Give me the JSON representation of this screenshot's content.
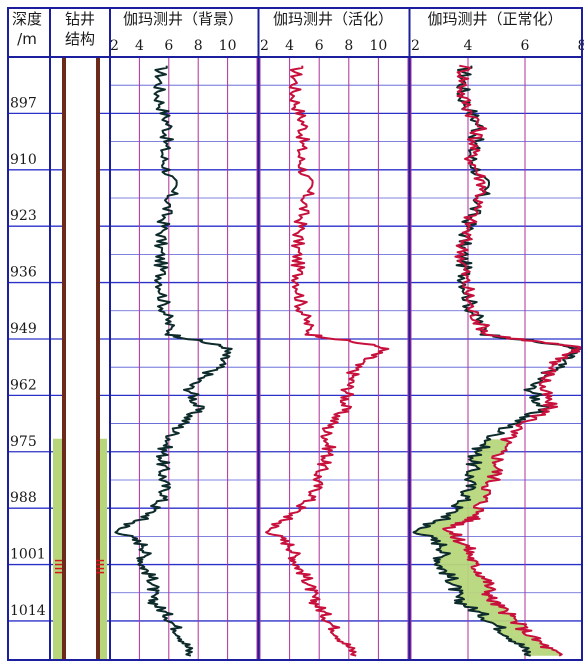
{
  "chart_data": {
    "type": "line",
    "header": {
      "depth_title_line1": "深度",
      "depth_title_line2": "/m",
      "well_title_line1": "钻井",
      "well_title_line2": "结构"
    },
    "depth_ticks": [
      897,
      910,
      923,
      936,
      949,
      962,
      975,
      988,
      1001,
      1014
    ],
    "depth_range": [
      884,
      1023
    ],
    "colors": {
      "frame": "#1b1f9e",
      "grid_h": "#2b31c8",
      "grid_v": "#b0309a",
      "background_curve": "#0e2b2b",
      "activated_curve": "#c8103c",
      "normalized_curve_bg": "#0e2b2b",
      "normalized_curve_act": "#c8103c",
      "fill": "#b7d67c",
      "casing": "#6b2a1a"
    },
    "tracks": [
      {
        "title": "伽玛测井（背景）",
        "tick_labels": [
          "2",
          "4",
          "6",
          "8",
          "10"
        ],
        "xlim": [
          2,
          12
        ],
        "series": [
          {
            "name": "背景",
            "role": "background",
            "depth": [
              886,
              893,
              900,
              907,
              914,
              921,
              928,
              935,
              942,
              948,
              951,
              955,
              960,
              965,
              970,
              975,
              980,
              985,
              990,
              993,
              997,
              1001,
              1005,
              1009,
              1013,
              1018,
              1022
            ],
            "values": [
              5.5,
              5.3,
              6.0,
              5.6,
              6.3,
              5.7,
              5.4,
              5.5,
              5.7,
              6.2,
              10.0,
              9.5,
              7.4,
              8.0,
              6.5,
              5.6,
              5.6,
              5.8,
              4.5,
              2.5,
              4.5,
              4.2,
              5.0,
              4.8,
              6.0,
              7.0,
              7.5
            ]
          }
        ]
      },
      {
        "title": "伽玛测井（活化）",
        "tick_labels": [
          "2",
          "4",
          "6",
          "8",
          "10"
        ],
        "xlim": [
          2,
          12
        ],
        "series": [
          {
            "name": "活化",
            "role": "activated",
            "depth": [
              886,
              893,
              900,
              907,
              914,
              921,
              928,
              935,
              942,
              948,
              951,
              955,
              960,
              965,
              970,
              975,
              980,
              985,
              990,
              993,
              997,
              1001,
              1005,
              1009,
              1013,
              1018,
              1022
            ],
            "values": [
              4.5,
              4.3,
              5.0,
              4.7,
              5.3,
              4.8,
              4.5,
              4.6,
              4.8,
              5.5,
              10.5,
              8.5,
              8.0,
              7.7,
              6.5,
              6.7,
              6.0,
              5.7,
              4.0,
              2.6,
              4.2,
              4.5,
              5.3,
              5.6,
              6.5,
              7.5,
              8.5
            ]
          }
        ]
      },
      {
        "title": "伽玛测井（正常化）",
        "tick_labels": [
          "2",
          "4",
          "6",
          "8"
        ],
        "xlim": [
          2,
          8
        ],
        "series": [
          {
            "name": "背景",
            "role": "background",
            "depth": [
              886,
              893,
              900,
              907,
              914,
              921,
              928,
              935,
              942,
              948,
              951,
              955,
              960,
              965,
              970,
              975,
              980,
              985,
              990,
              993,
              997,
              1001,
              1005,
              1009,
              1013,
              1018,
              1022
            ],
            "values": [
              3.9,
              3.8,
              4.4,
              4.1,
              4.6,
              4.1,
              3.8,
              3.9,
              4.1,
              4.7,
              7.8,
              7.2,
              6.2,
              6.6,
              5.2,
              4.3,
              4.1,
              4.0,
              3.3,
              2.2,
              3.2,
              3.0,
              3.5,
              3.6,
              4.6,
              5.6,
              6.2
            ]
          },
          {
            "name": "活化",
            "role": "activated",
            "depth": [
              886,
              893,
              900,
              907,
              914,
              921,
              928,
              935,
              942,
              948,
              951,
              955,
              960,
              965,
              970,
              975,
              980,
              985,
              990,
              993,
              997,
              1001,
              1005,
              1009,
              1013,
              1018,
              1022
            ],
            "values": [
              3.9,
              3.8,
              4.4,
              4.1,
              4.6,
              4.1,
              3.8,
              3.9,
              4.1,
              4.7,
              7.9,
              7.0,
              6.6,
              6.9,
              5.6,
              5.1,
              5.0,
              4.6,
              4.3,
              3.3,
              4.0,
              4.2,
              4.7,
              4.8,
              5.5,
              6.3,
              7.2
            ]
          }
        ]
      }
    ],
    "fill_between_depth": [
      972,
      1023
    ]
  }
}
